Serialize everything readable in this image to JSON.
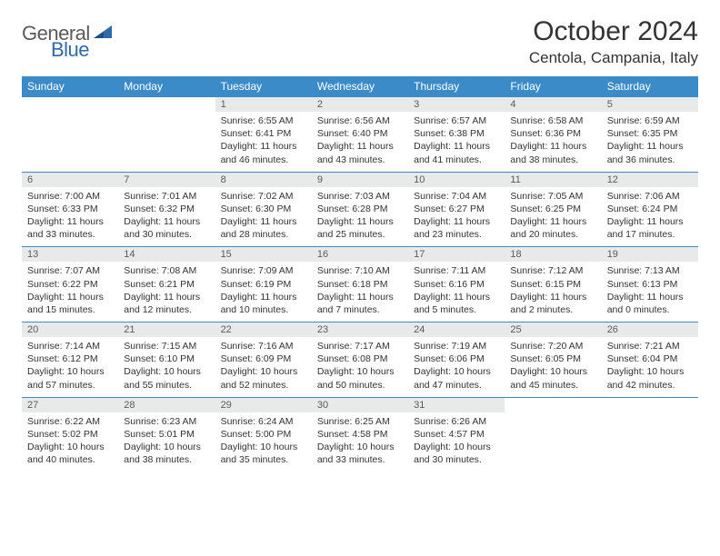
{
  "logo": {
    "general": "General",
    "blue": "Blue"
  },
  "title": "October 2024",
  "location": "Centola, Campania, Italy",
  "colors": {
    "header_bg": "#3b8bc9",
    "header_text": "#ffffff",
    "daynum_bg": "#e8eaea",
    "daynum_text": "#5a5a5a",
    "body_text": "#333333",
    "rule": "#3b8bc9",
    "logo_gray": "#5a5a5a",
    "logo_blue": "#2f6aa8"
  },
  "daysOfWeek": [
    "Sunday",
    "Monday",
    "Tuesday",
    "Wednesday",
    "Thursday",
    "Friday",
    "Saturday"
  ],
  "startOffset": 2,
  "daysInMonth": 31,
  "cells": {
    "1": {
      "sunrise": "6:55 AM",
      "sunset": "6:41 PM",
      "daylight": "11 hours and 46 minutes."
    },
    "2": {
      "sunrise": "6:56 AM",
      "sunset": "6:40 PM",
      "daylight": "11 hours and 43 minutes."
    },
    "3": {
      "sunrise": "6:57 AM",
      "sunset": "6:38 PM",
      "daylight": "11 hours and 41 minutes."
    },
    "4": {
      "sunrise": "6:58 AM",
      "sunset": "6:36 PM",
      "daylight": "11 hours and 38 minutes."
    },
    "5": {
      "sunrise": "6:59 AM",
      "sunset": "6:35 PM",
      "daylight": "11 hours and 36 minutes."
    },
    "6": {
      "sunrise": "7:00 AM",
      "sunset": "6:33 PM",
      "daylight": "11 hours and 33 minutes."
    },
    "7": {
      "sunrise": "7:01 AM",
      "sunset": "6:32 PM",
      "daylight": "11 hours and 30 minutes."
    },
    "8": {
      "sunrise": "7:02 AM",
      "sunset": "6:30 PM",
      "daylight": "11 hours and 28 minutes."
    },
    "9": {
      "sunrise": "7:03 AM",
      "sunset": "6:28 PM",
      "daylight": "11 hours and 25 minutes."
    },
    "10": {
      "sunrise": "7:04 AM",
      "sunset": "6:27 PM",
      "daylight": "11 hours and 23 minutes."
    },
    "11": {
      "sunrise": "7:05 AM",
      "sunset": "6:25 PM",
      "daylight": "11 hours and 20 minutes."
    },
    "12": {
      "sunrise": "7:06 AM",
      "sunset": "6:24 PM",
      "daylight": "11 hours and 17 minutes."
    },
    "13": {
      "sunrise": "7:07 AM",
      "sunset": "6:22 PM",
      "daylight": "11 hours and 15 minutes."
    },
    "14": {
      "sunrise": "7:08 AM",
      "sunset": "6:21 PM",
      "daylight": "11 hours and 12 minutes."
    },
    "15": {
      "sunrise": "7:09 AM",
      "sunset": "6:19 PM",
      "daylight": "11 hours and 10 minutes."
    },
    "16": {
      "sunrise": "7:10 AM",
      "sunset": "6:18 PM",
      "daylight": "11 hours and 7 minutes."
    },
    "17": {
      "sunrise": "7:11 AM",
      "sunset": "6:16 PM",
      "daylight": "11 hours and 5 minutes."
    },
    "18": {
      "sunrise": "7:12 AM",
      "sunset": "6:15 PM",
      "daylight": "11 hours and 2 minutes."
    },
    "19": {
      "sunrise": "7:13 AM",
      "sunset": "6:13 PM",
      "daylight": "11 hours and 0 minutes."
    },
    "20": {
      "sunrise": "7:14 AM",
      "sunset": "6:12 PM",
      "daylight": "10 hours and 57 minutes."
    },
    "21": {
      "sunrise": "7:15 AM",
      "sunset": "6:10 PM",
      "daylight": "10 hours and 55 minutes."
    },
    "22": {
      "sunrise": "7:16 AM",
      "sunset": "6:09 PM",
      "daylight": "10 hours and 52 minutes."
    },
    "23": {
      "sunrise": "7:17 AM",
      "sunset": "6:08 PM",
      "daylight": "10 hours and 50 minutes."
    },
    "24": {
      "sunrise": "7:19 AM",
      "sunset": "6:06 PM",
      "daylight": "10 hours and 47 minutes."
    },
    "25": {
      "sunrise": "7:20 AM",
      "sunset": "6:05 PM",
      "daylight": "10 hours and 45 minutes."
    },
    "26": {
      "sunrise": "7:21 AM",
      "sunset": "6:04 PM",
      "daylight": "10 hours and 42 minutes."
    },
    "27": {
      "sunrise": "6:22 AM",
      "sunset": "5:02 PM",
      "daylight": "10 hours and 40 minutes."
    },
    "28": {
      "sunrise": "6:23 AM",
      "sunset": "5:01 PM",
      "daylight": "10 hours and 38 minutes."
    },
    "29": {
      "sunrise": "6:24 AM",
      "sunset": "5:00 PM",
      "daylight": "10 hours and 35 minutes."
    },
    "30": {
      "sunrise": "6:25 AM",
      "sunset": "4:58 PM",
      "daylight": "10 hours and 33 minutes."
    },
    "31": {
      "sunrise": "6:26 AM",
      "sunset": "4:57 PM",
      "daylight": "10 hours and 30 minutes."
    }
  },
  "labels": {
    "sunrise": "Sunrise:",
    "sunset": "Sunset:",
    "daylight": "Daylight:"
  }
}
